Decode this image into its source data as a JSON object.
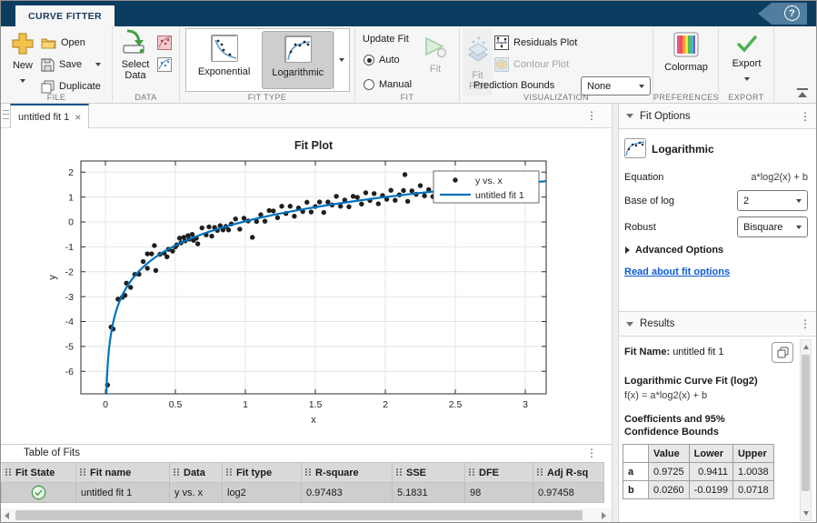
{
  "app": {
    "ribbon_tab": "CURVE FITTER",
    "help_glyph": "?"
  },
  "ribbon": {
    "file": {
      "section": "FILE",
      "new": "New",
      "open": "Open",
      "save": "Save",
      "duplicate": "Duplicate"
    },
    "data": {
      "section": "DATA",
      "select_line1": "Select",
      "select_line2": "Data"
    },
    "fit_type": {
      "section": "FIT TYPE",
      "exponential": "Exponential",
      "logarithmic": "Logarithmic"
    },
    "fit": {
      "section": "FIT",
      "update_fit": "Update Fit",
      "auto": "Auto",
      "manual": "Manual",
      "fit_button": "Fit"
    },
    "visualization": {
      "section": "VISUALIZATION",
      "fit_plot_line1": "Fit",
      "fit_plot_line2": "Plot",
      "residuals": "Residuals Plot",
      "contour": "Contour Plot",
      "prediction_bounds": "Prediction Bounds",
      "prediction_value": "None"
    },
    "preferences": {
      "section": "PREFERENCES",
      "colormap": "Colormap"
    },
    "export": {
      "section": "EXPORT",
      "export": "Export"
    }
  },
  "document": {
    "tab": "untitled fit 1",
    "close_glyph": "×"
  },
  "chart_data": {
    "type": "scatter",
    "title": "Fit Plot",
    "xlabel": "x",
    "ylabel": "y",
    "xlim": [
      -0.18,
      3.15
    ],
    "ylim": [
      -6.9,
      2.45
    ],
    "xticks": [
      0,
      0.5,
      1,
      1.5,
      2,
      2.5,
      3
    ],
    "yticks": [
      2,
      1,
      0,
      -1,
      -2,
      -3,
      -4,
      -5,
      -6
    ],
    "grid": true,
    "legend": [
      {
        "label": "y vs. x",
        "marker": "point",
        "color": "#1f1f1f"
      },
      {
        "label": "untitled fit 1",
        "marker": "line",
        "color": "#0072bd"
      }
    ],
    "fit": {
      "a": 0.9725,
      "b": 0.026,
      "equation": "a*log2(x) + b",
      "color": "#0072bd"
    },
    "scatter_color": "#1f1f1f",
    "points": [
      [
        0.015,
        -6.55
      ],
      [
        0.04,
        -4.22
      ],
      [
        0.055,
        -4.3
      ],
      [
        0.09,
        -3.1
      ],
      [
        0.12,
        -3.03
      ],
      [
        0.14,
        -2.95
      ],
      [
        0.15,
        -2.46
      ],
      [
        0.18,
        -2.63
      ],
      [
        0.21,
        -2.11
      ],
      [
        0.24,
        -2.1
      ],
      [
        0.27,
        -1.59
      ],
      [
        0.3,
        -1.86
      ],
      [
        0.3,
        -1.28
      ],
      [
        0.33,
        -1.28
      ],
      [
        0.35,
        -0.95
      ],
      [
        0.36,
        -1.95
      ],
      [
        0.39,
        -1.3
      ],
      [
        0.42,
        -1.25
      ],
      [
        0.44,
        -1.4
      ],
      [
        0.45,
        -1.1
      ],
      [
        0.48,
        -1.17
      ],
      [
        0.5,
        -1.0
      ],
      [
        0.51,
        -0.92
      ],
      [
        0.53,
        -0.65
      ],
      [
        0.54,
        -0.84
      ],
      [
        0.56,
        -0.62
      ],
      [
        0.57,
        -0.76
      ],
      [
        0.59,
        -0.55
      ],
      [
        0.6,
        -0.69
      ],
      [
        0.62,
        -0.5
      ],
      [
        0.63,
        -0.74
      ],
      [
        0.65,
        -0.65
      ],
      [
        0.66,
        -0.88
      ],
      [
        0.69,
        -0.24
      ],
      [
        0.72,
        -0.52
      ],
      [
        0.74,
        -0.2
      ],
      [
        0.76,
        -0.57
      ],
      [
        0.78,
        -0.22
      ],
      [
        0.8,
        -0.34
      ],
      [
        0.82,
        -0.15
      ],
      [
        0.84,
        -0.32
      ],
      [
        0.86,
        -0.18
      ],
      [
        0.88,
        -0.32
      ],
      [
        0.9,
        -0.08
      ],
      [
        0.93,
        0.12
      ],
      [
        0.96,
        -0.29
      ],
      [
        0.99,
        0.15
      ],
      [
        1.02,
        0.04
      ],
      [
        1.05,
        -0.62
      ],
      [
        1.08,
        0.02
      ],
      [
        1.11,
        0.29
      ],
      [
        1.14,
        0.03
      ],
      [
        1.17,
        0.46
      ],
      [
        1.2,
        0.44
      ],
      [
        1.23,
        0.17
      ],
      [
        1.26,
        0.63
      ],
      [
        1.29,
        0.34
      ],
      [
        1.32,
        0.63
      ],
      [
        1.35,
        0.23
      ],
      [
        1.38,
        0.56
      ],
      [
        1.41,
        0.42
      ],
      [
        1.44,
        0.79
      ],
      [
        1.47,
        0.4
      ],
      [
        1.5,
        0.62
      ],
      [
        1.53,
        0.8
      ],
      [
        1.56,
        0.38
      ],
      [
        1.59,
        0.8
      ],
      [
        1.62,
        0.68
      ],
      [
        1.65,
        1.03
      ],
      [
        1.68,
        0.63
      ],
      [
        1.71,
        0.88
      ],
      [
        1.74,
        0.61
      ],
      [
        1.77,
        1.03
      ],
      [
        1.8,
        0.99
      ],
      [
        1.83,
        0.72
      ],
      [
        1.86,
        1.17
      ],
      [
        1.89,
        0.86
      ],
      [
        1.92,
        1.14
      ],
      [
        1.95,
        0.73
      ],
      [
        1.98,
        1.06
      ],
      [
        2.01,
        0.91
      ],
      [
        2.04,
        1.27
      ],
      [
        2.07,
        0.87
      ],
      [
        2.1,
        1.09
      ],
      [
        2.13,
        1.26
      ],
      [
        2.14,
        1.9
      ],
      [
        2.16,
        0.83
      ],
      [
        2.19,
        1.25
      ],
      [
        2.22,
        1.11
      ],
      [
        2.25,
        1.46
      ],
      [
        2.28,
        1.05
      ],
      [
        2.31,
        1.3
      ],
      [
        2.34,
        1.02
      ],
      [
        2.37,
        1.43
      ],
      [
        2.4,
        1.39
      ],
      [
        2.43,
        1.11
      ],
      [
        2.46,
        1.56
      ],
      [
        2.49,
        1.24
      ],
      [
        2.52,
        1.52
      ],
      [
        2.55,
        1.11
      ],
      [
        2.58,
        1.42
      ],
      [
        2.61,
        1.27
      ],
      [
        2.64,
        1.62
      ],
      [
        2.67,
        1.22
      ],
      [
        2.7,
        1.44
      ],
      [
        2.73,
        1.6
      ],
      [
        2.76,
        1.17
      ],
      [
        2.79,
        1.58
      ],
      [
        2.82,
        1.45
      ],
      [
        2.85,
        1.35
      ],
      [
        2.88,
        1.38
      ],
      [
        2.91,
        1.62
      ],
      [
        2.94,
        1.33
      ],
      [
        2.97,
        1.45
      ],
      [
        3.0,
        1.57
      ]
    ]
  },
  "table_of_fits": {
    "title": "Table of Fits",
    "columns": [
      "Fit State",
      "Fit name",
      "Data",
      "Fit type",
      "R-square",
      "SSE",
      "DFE",
      "Adj R-sq"
    ],
    "row": [
      "",
      "untitled fit 1",
      "y vs. x",
      "log2",
      "0.97483",
      "5.1831",
      "98",
      "0.97458"
    ]
  },
  "fit_options": {
    "header": "Fit Options",
    "type": "Logarithmic",
    "equation_label": "Equation",
    "equation": "a*log2(x) + b",
    "base_label": "Base of log",
    "base": "2",
    "robust_label": "Robust",
    "robust": "Bisquare",
    "advanced": "Advanced Options",
    "link": "Read about fit options"
  },
  "results": {
    "header": "Results",
    "fit_name_label": "Fit Name:",
    "fit_name": "untitled fit 1",
    "fit_title": "Logarithmic Curve Fit (log2)",
    "fx": "f(x) = a*log2(x) + b",
    "coeff_line1": "Coefficients and 95%",
    "coeff_line2": "Confidence Bounds",
    "table": {
      "headers": [
        "",
        "Value",
        "Lower",
        "Upper"
      ],
      "rows": [
        [
          "a",
          "0.9725",
          "0.9411",
          "1.0038"
        ],
        [
          "b",
          "0.0260",
          "-0.0199",
          "0.0718"
        ]
      ]
    }
  },
  "colors": {
    "accent_blue": "#0072bd",
    "titlebar": "#0c3c60",
    "link": "#0b5bd3",
    "success_green": "#3f9c46"
  }
}
